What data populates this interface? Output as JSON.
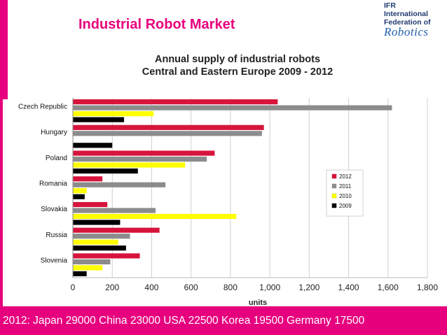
{
  "header": {
    "title": "Industrial Robot Market"
  },
  "logo": {
    "line1": "IFR",
    "line2": "International",
    "line3": "Federation of",
    "line4": "Robotics"
  },
  "footer": {
    "text": "2012:  Japan 29000  China 23000  USA  22500  Korea  19500  Germany  17500"
  },
  "colors": {
    "accent": "#e6007e",
    "s2012": "#d7143c",
    "s2011": "#8c8c8c",
    "s2010": "#ffff00",
    "s2009": "#000000"
  },
  "chart_data": {
    "type": "bar",
    "orientation": "horizontal",
    "title_line1": "Annual supply of industrial robots",
    "title_line2": "Central and Eastern Europe  2009 - 2012",
    "xlabel": "units",
    "ylabel": "",
    "xlim": [
      0,
      1800
    ],
    "xticks": [
      0,
      200,
      400,
      600,
      800,
      1000,
      1200,
      1400,
      1600,
      1800
    ],
    "tick_labels": [
      "0",
      "200",
      "400",
      "600",
      "800",
      "1,000",
      "1,200",
      "1,400",
      "1,600",
      "1,800"
    ],
    "grid": true,
    "legend_position": "right",
    "categories": [
      "Czech Republic",
      "Hungary",
      "Poland",
      "Romania",
      "Slovakia",
      "Russia",
      "Slovenia"
    ],
    "series": [
      {
        "name": "2012",
        "color": "#d7143c",
        "values": [
          1040,
          970,
          720,
          150,
          175,
          440,
          340
        ]
      },
      {
        "name": "2011",
        "color": "#8c8c8c",
        "values": [
          1620,
          960,
          680,
          470,
          420,
          290,
          190
        ]
      },
      {
        "name": "2010",
        "color": "#ffff00",
        "values": [
          410,
          0,
          570,
          70,
          830,
          230,
          150
        ]
      },
      {
        "name": "2009",
        "color": "#000000",
        "values": [
          260,
          200,
          330,
          60,
          240,
          270,
          70
        ]
      }
    ],
    "legend_order": [
      "2012",
      "2011",
      "2010",
      "2009"
    ]
  }
}
